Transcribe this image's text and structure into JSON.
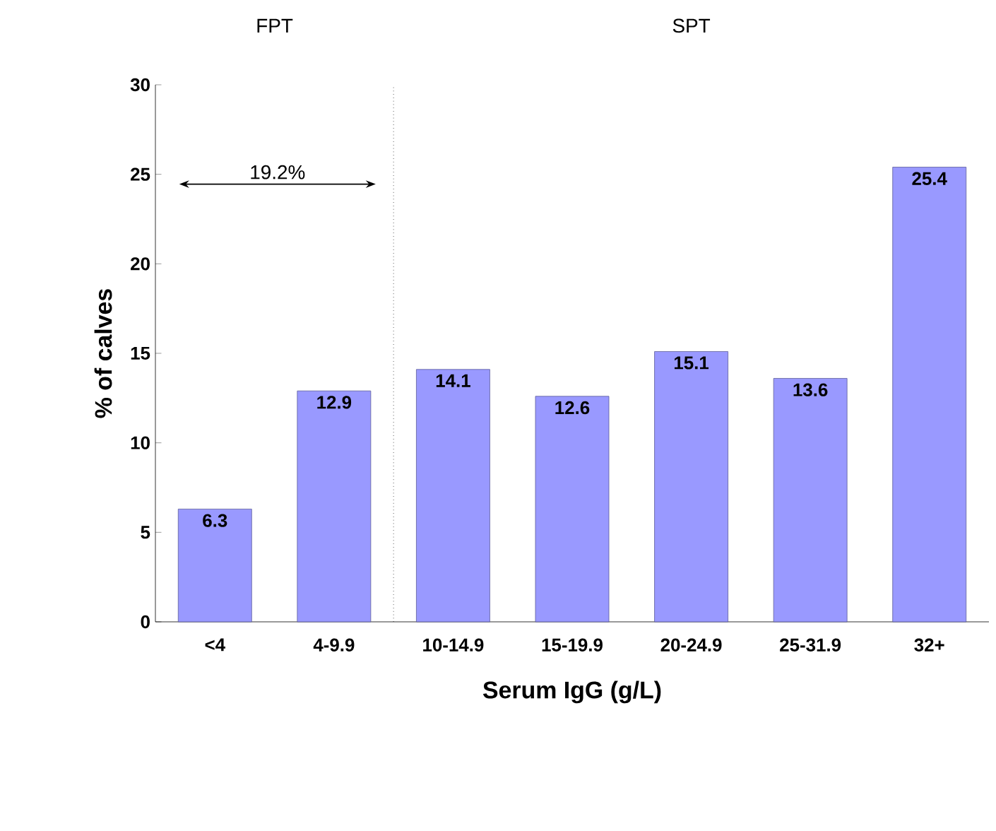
{
  "chart_data": {
    "type": "bar",
    "xlabel": "Serum IgG (g/L)",
    "ylabel": "% of calves",
    "categories": [
      "<4",
      "4-9.9",
      "10-14.9",
      "15-19.9",
      "20-24.9",
      "25-31.9",
      "32+"
    ],
    "values": [
      6.3,
      12.9,
      14.1,
      12.6,
      15.1,
      13.6,
      25.4
    ],
    "color": "#9999ff",
    "data_labels": true,
    "grid": false,
    "ylim": [
      0,
      30
    ],
    "yticks": [
      0,
      5,
      10,
      15,
      20,
      25,
      30
    ],
    "annotations": [
      "FPT",
      "SPT",
      "19.2%"
    ]
  }
}
